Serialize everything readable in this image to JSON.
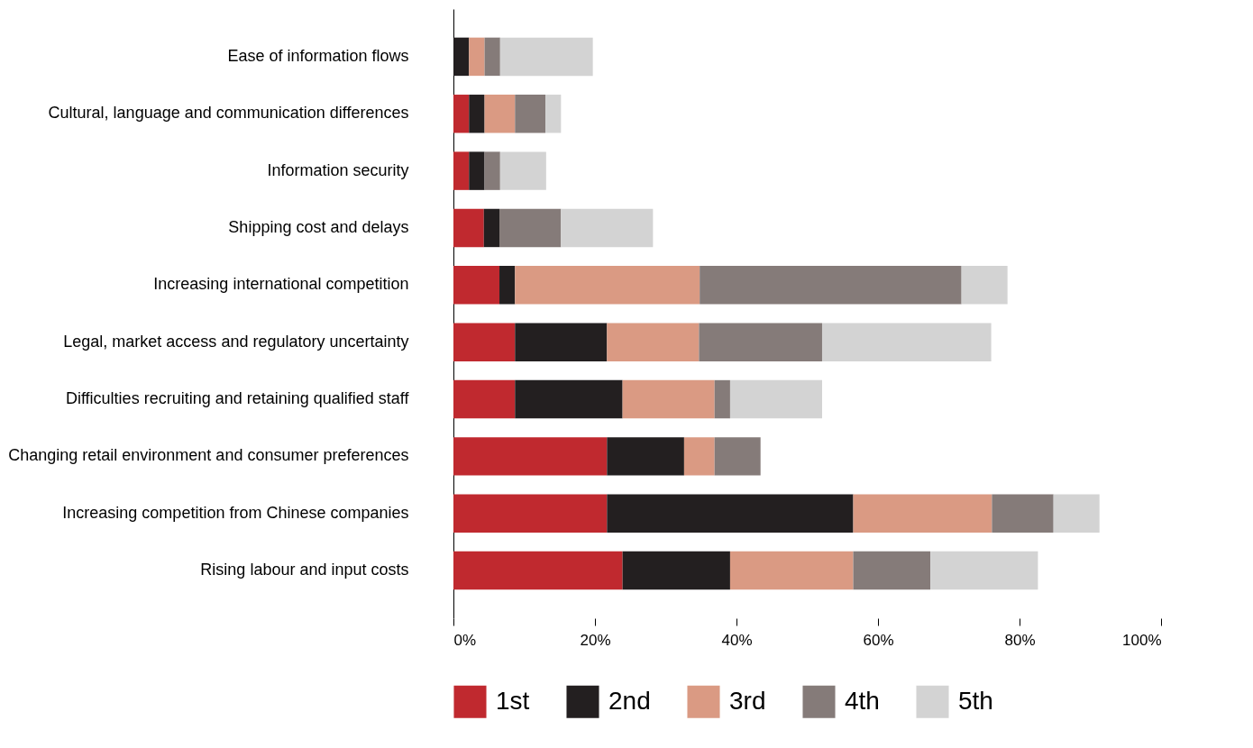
{
  "chart_data": {
    "type": "bar",
    "orientation": "horizontal",
    "stacked": true,
    "legend": "bottom",
    "grid": false,
    "categories": [
      "Ease of information flows",
      "Cultural, language and communication differences",
      "Information security",
      "Shipping cost and delays",
      "Increasing international competition",
      "Legal, market access and regulatory uncertainty",
      "Difficulties recruiting and retaining qualified staff",
      "Changing retail environment and consumer preferences",
      "Increasing competition from Chinese companies",
      "Rising labour and input costs"
    ],
    "series": [
      {
        "name": "1st",
        "color": "#c0292f",
        "values": [
          0,
          2.2,
          2.2,
          4.3,
          6.5,
          8.7,
          8.7,
          21.7,
          21.7,
          23.9
        ]
      },
      {
        "name": "2nd",
        "color": "#231f20",
        "values": [
          2.2,
          2.2,
          2.2,
          2.2,
          2.2,
          13.0,
          15.2,
          10.9,
          34.8,
          15.2
        ]
      },
      {
        "name": "3rd",
        "color": "#da9a83",
        "values": [
          2.2,
          4.3,
          0,
          0,
          26.1,
          13.0,
          13.0,
          4.3,
          19.6,
          17.4
        ]
      },
      {
        "name": "4th",
        "color": "#857b79",
        "values": [
          2.2,
          4.3,
          2.2,
          8.7,
          37.0,
          17.4,
          2.2,
          6.5,
          8.7,
          10.9
        ]
      },
      {
        "name": "5th",
        "color": "#d3d3d3",
        "values": [
          13.1,
          2.2,
          6.5,
          13.0,
          6.5,
          23.9,
          13.0,
          0,
          6.5,
          15.2
        ]
      }
    ],
    "xlim": [
      0,
      100
    ],
    "xticks": [
      {
        "value": 0,
        "label": "0%"
      },
      {
        "value": 20,
        "label": "20%"
      },
      {
        "value": 40,
        "label": "40%"
      },
      {
        "value": 60,
        "label": "60%"
      },
      {
        "value": 80,
        "label": "80%"
      },
      {
        "value": 100,
        "label": "100%"
      }
    ]
  }
}
